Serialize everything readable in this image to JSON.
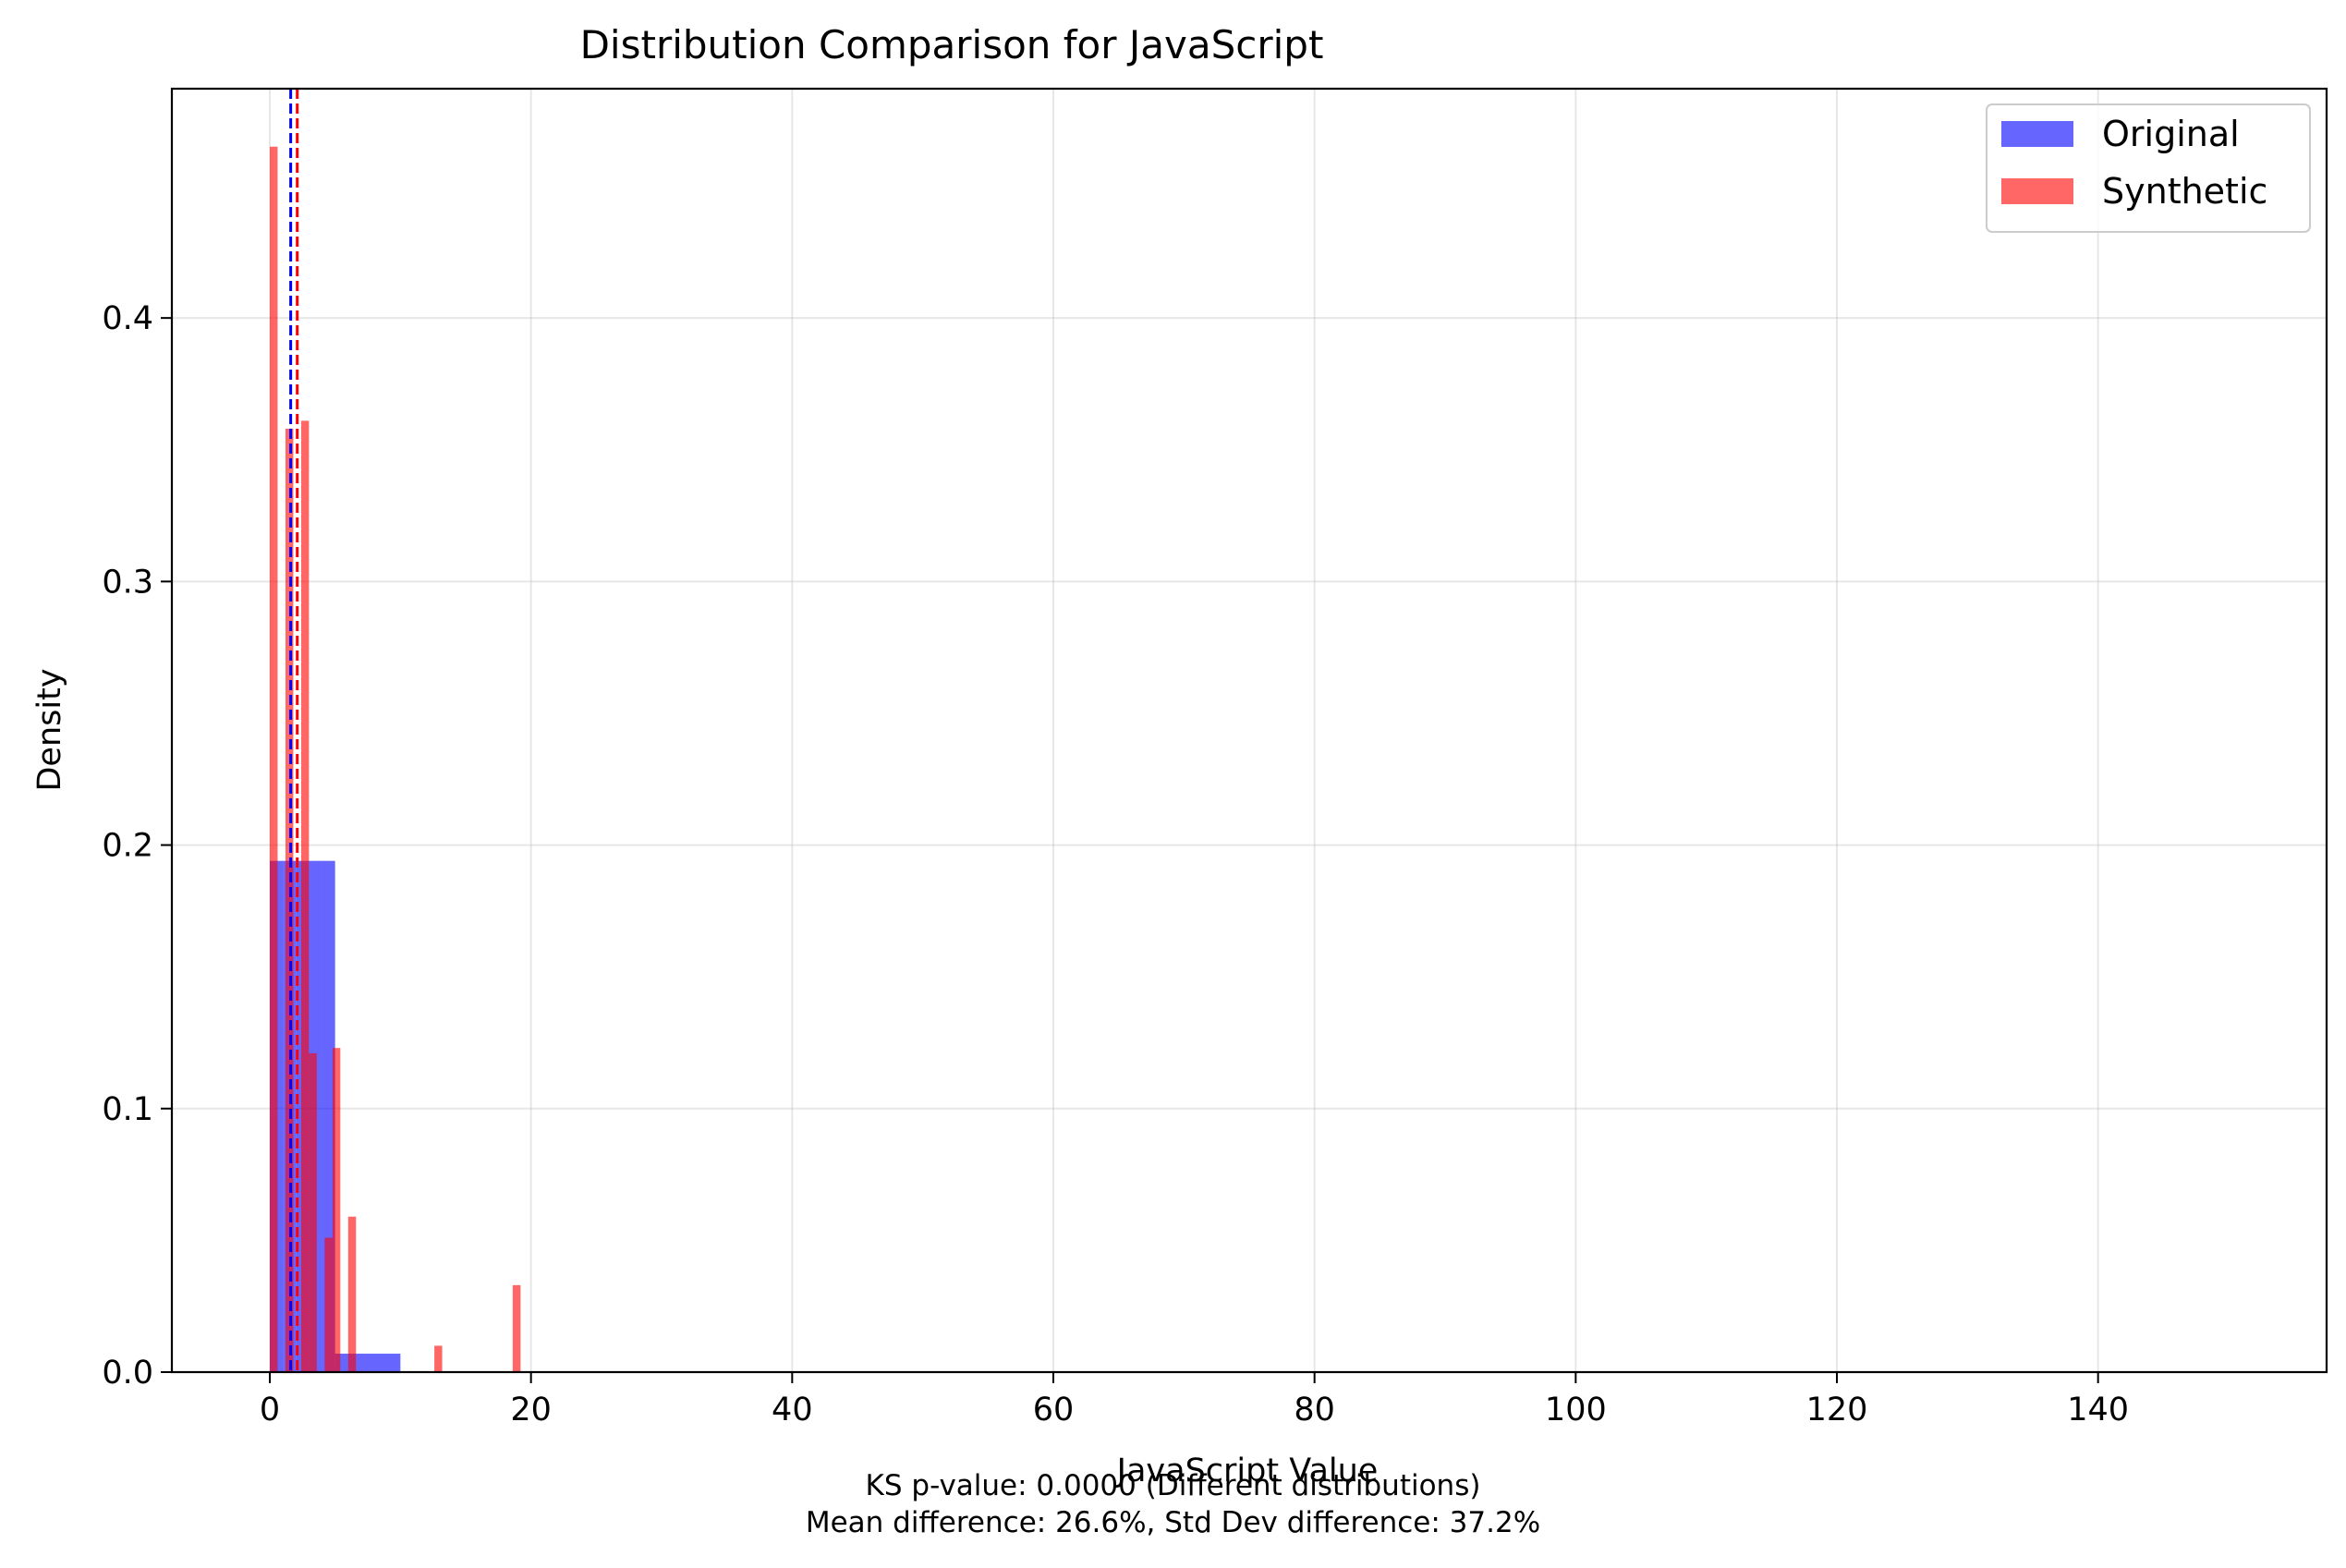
{
  "chart_data": {
    "type": "histogram",
    "title": "Distribution Comparison for JavaScript",
    "xlabel": "JavaScript Value",
    "ylabel": "Density",
    "xlim": [
      -7.5,
      157.5
    ],
    "ylim": [
      0,
      0.487
    ],
    "x_ticks": [
      0,
      20,
      40,
      60,
      80,
      100,
      120,
      140
    ],
    "y_ticks": [
      0.0,
      0.1,
      0.2,
      0.3,
      0.4
    ],
    "y_tick_labels": [
      "0.0",
      "0.1",
      "0.2",
      "0.3",
      "0.4"
    ],
    "grid": true,
    "legend_position": "top-right",
    "series": [
      {
        "name": "Original",
        "color": "#0000ff",
        "alpha": 0.6,
        "bins": [
          {
            "x0": 0.0,
            "x1": 1.0,
            "density": 0.194
          },
          {
            "x0": 1.0,
            "x1": 2.0,
            "density": 0.194
          },
          {
            "x0": 2.0,
            "x1": 3.0,
            "density": 0.194
          },
          {
            "x0": 3.0,
            "x1": 4.0,
            "density": 0.194
          },
          {
            "x0": 4.0,
            "x1": 5.0,
            "density": 0.194
          },
          {
            "x0": 5.0,
            "x1": 10.0,
            "density": 0.007
          }
        ],
        "mean": 1.6
      },
      {
        "name": "Synthetic",
        "color": "#ff0000",
        "alpha": 0.6,
        "bins": [
          {
            "x0": 0.0,
            "x1": 0.6,
            "density": 0.465
          },
          {
            "x0": 0.6,
            "x1": 1.2,
            "density": 0.0
          },
          {
            "x0": 1.2,
            "x1": 1.8,
            "density": 0.358
          },
          {
            "x0": 1.8,
            "x1": 2.4,
            "density": 0.0
          },
          {
            "x0": 2.4,
            "x1": 3.0,
            "density": 0.361
          },
          {
            "x0": 3.0,
            "x1": 3.6,
            "density": 0.121
          },
          {
            "x0": 3.6,
            "x1": 4.2,
            "density": 0.0
          },
          {
            "x0": 4.2,
            "x1": 4.8,
            "density": 0.051
          },
          {
            "x0": 4.8,
            "x1": 5.4,
            "density": 0.123
          },
          {
            "x0": 5.4,
            "x1": 6.0,
            "density": 0.0
          },
          {
            "x0": 6.0,
            "x1": 6.6,
            "density": 0.059
          },
          {
            "x0": 12.6,
            "x1": 13.2,
            "density": 0.01
          },
          {
            "x0": 18.6,
            "x1": 19.2,
            "density": 0.033
          }
        ],
        "mean": 2.1
      }
    ],
    "annotations": [
      "KS p-value: 0.0000 (Different distributions)",
      "Mean difference: 26.6%, Std Dev difference: 37.2%"
    ]
  }
}
